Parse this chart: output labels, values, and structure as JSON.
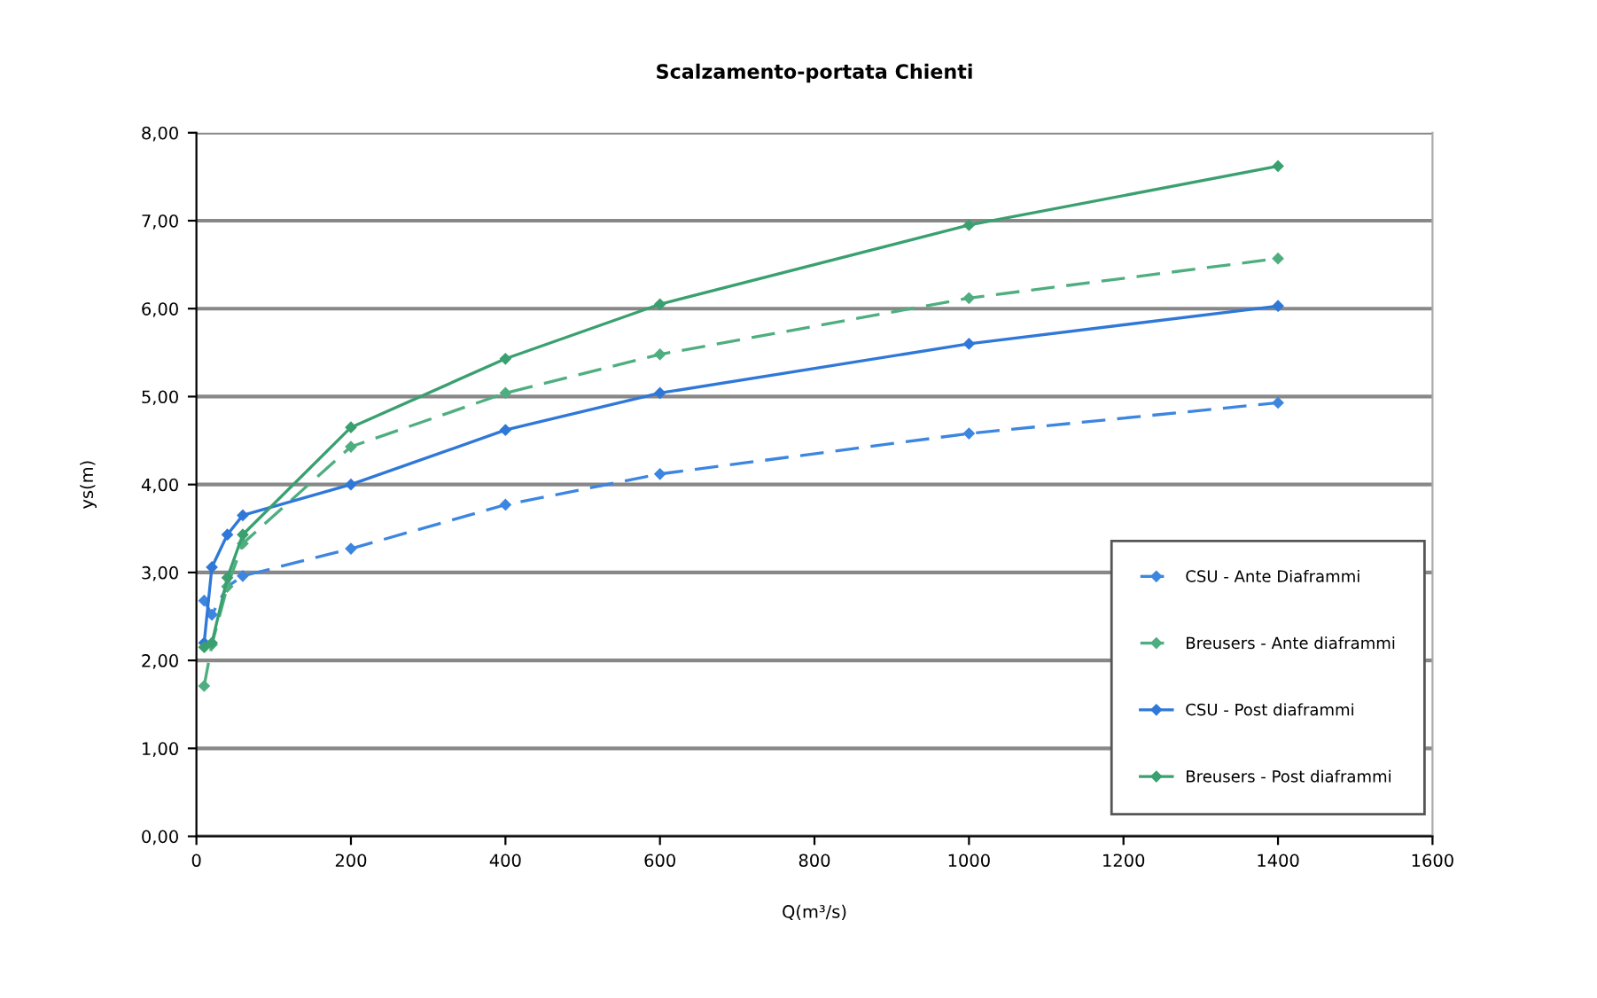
{
  "chart_data": {
    "type": "line",
    "title": "Scalzamento-portata Chienti",
    "xlabel": "Q(m³/s)",
    "ylabel": "ys(m)",
    "x": [
      10,
      20,
      40,
      60,
      200,
      400,
      600,
      1000,
      1400
    ],
    "series": [
      {
        "name": "CSU - Ante Diaframmi",
        "color": "#3d86e0",
        "line_style": "dashed",
        "values": [
          2.68,
          2.52,
          2.84,
          2.96,
          3.27,
          3.77,
          4.12,
          4.58,
          4.93
        ]
      },
      {
        "name": "Breusers - Ante diaframmi",
        "color": "#4fae80",
        "line_style": "dashed",
        "values": [
          1.71,
          2.18,
          2.84,
          3.33,
          4.43,
          5.04,
          5.48,
          6.12,
          6.57
        ]
      },
      {
        "name": "CSU - Post diaframmi",
        "color": "#2f78d8",
        "line_style": "solid",
        "values": [
          2.2,
          3.06,
          3.43,
          3.65,
          4.0,
          4.62,
          5.04,
          5.6,
          6.03
        ]
      },
      {
        "name": "Breusers - Post diaframmi",
        "color": "#3aa070",
        "line_style": "solid",
        "values": [
          2.15,
          2.2,
          2.94,
          3.43,
          4.65,
          5.43,
          6.05,
          6.95,
          7.62
        ]
      }
    ],
    "xlim": [
      0,
      1600
    ],
    "xticks": [
      0,
      200,
      400,
      600,
      800,
      1000,
      1200,
      1400,
      1600
    ],
    "ylim": [
      0,
      8
    ],
    "yticks": [
      {
        "value": 0,
        "label": "0,00"
      },
      {
        "value": 1,
        "label": "1,00"
      },
      {
        "value": 2,
        "label": "2,00"
      },
      {
        "value": 3,
        "label": "3,00"
      },
      {
        "value": 4,
        "label": "4,00"
      },
      {
        "value": 5,
        "label": "5,00"
      },
      {
        "value": 6,
        "label": "6,00"
      },
      {
        "value": 7,
        "label": "7,00"
      },
      {
        "value": 8,
        "label": "8,00"
      }
    ],
    "grid": "y",
    "legend": "bottom right",
    "marker": "diamond"
  }
}
